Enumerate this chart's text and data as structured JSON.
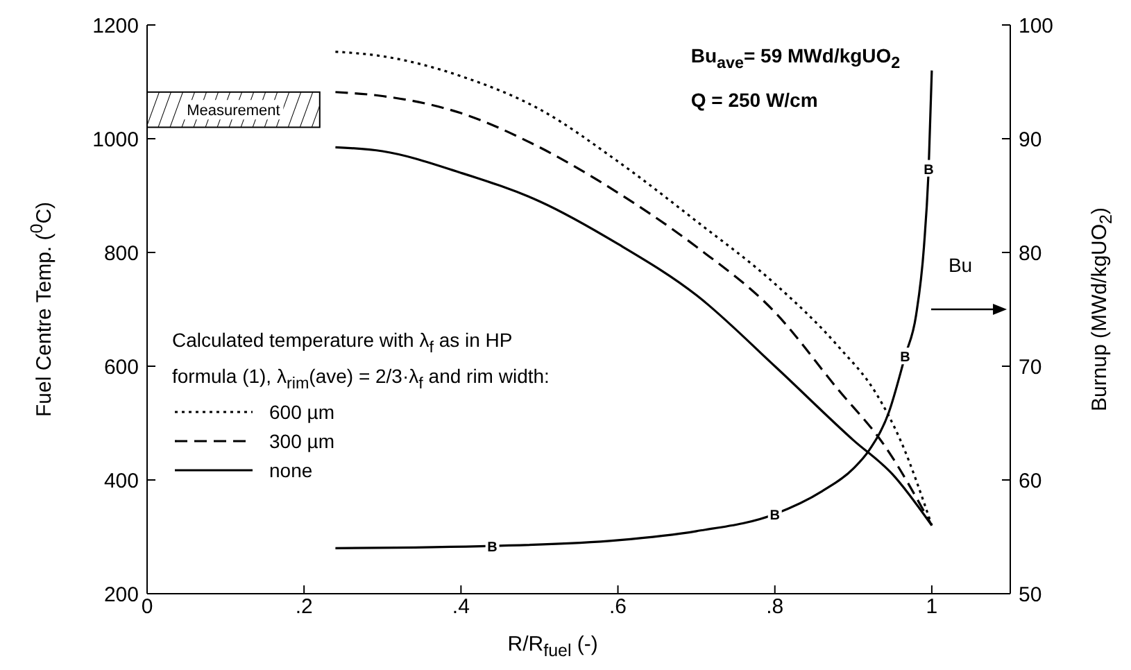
{
  "chart_data": {
    "type": "line",
    "xlabel": "R/R$_{fuel}$ (-)",
    "ylabel": "Fuel Centre Temp. ($^{0}$C)",
    "y2label": "Burnup (MWd/kgUO$_{2}$)",
    "legend_title": "Calculated temperature with λ$_{f}$ as in HP formula (1), λ$_{rim}$(ave) = 2/3·λ$_{f}$ and rim width:",
    "annotations": [
      "Bu$_{ave}$= 59 MWd/kgUO$_{2}$",
      "Q = 250 W/cm"
    ],
    "xlim": [
      0,
      1.1
    ],
    "xticks": [
      0,
      {
        "value": 0.2,
        "label": ".2"
      },
      {
        "value": 0.4,
        "label": ".4"
      },
      {
        "value": 0.6,
        "label": ".6"
      },
      {
        "value": 0.8,
        "label": ".8"
      },
      1
    ],
    "ylim": [
      200,
      1200
    ],
    "yticks": [
      200,
      400,
      600,
      800,
      1000,
      1200
    ],
    "y2lim": [
      50,
      100
    ],
    "y2ticks": [
      50,
      60,
      70,
      80,
      90,
      100
    ],
    "legend": "bottom left",
    "bands": [
      {
        "axis": "y",
        "from": 1020,
        "to": 1082,
        "label": "Measurement"
      }
    ],
    "series": [
      {
        "name": "600 µm",
        "color": "#000000",
        "line_style": "dotted",
        "x": [
          0.24,
          0.3,
          0.4,
          0.5,
          0.6,
          0.7,
          0.8,
          0.88,
          0.93,
          0.96,
          1.0
        ],
        "values": [
          1153,
          1145,
          1110,
          1052,
          960,
          855,
          745,
          636,
          550,
          470,
          320
        ]
      },
      {
        "name": "300 µm",
        "color": "#000000",
        "line_style": "dashed",
        "x": [
          0.24,
          0.3,
          0.4,
          0.5,
          0.6,
          0.7,
          0.8,
          0.88,
          0.94,
          1.0
        ],
        "values": [
          1082,
          1075,
          1045,
          985,
          905,
          810,
          695,
          560,
          460,
          320
        ]
      },
      {
        "name": "none",
        "color": "#000000",
        "line_style": "solid",
        "x": [
          0.24,
          0.3,
          0.4,
          0.5,
          0.6,
          0.7,
          0.8,
          0.9,
          0.95,
          1.0
        ],
        "values": [
          985,
          978,
          940,
          890,
          815,
          725,
          600,
          470,
          410,
          320
        ]
      },
      {
        "name": "Bu",
        "color": "#000000",
        "line_style": "solid",
        "axis": "y2",
        "x": [
          0.24,
          0.44,
          0.6,
          0.7,
          0.8,
          0.86,
          0.9,
          0.92,
          0.945,
          0.966,
          0.98,
          0.99,
          0.996,
          1.0
        ],
        "values": [
          54.0,
          54.2,
          54.7,
          55.5,
          57.0,
          59.0,
          61.0,
          62.6,
          65.9,
          70.9,
          74.5,
          80.5,
          87.4,
          96
        ],
        "value_labels": [
          null,
          "B",
          null,
          null,
          "B",
          null,
          null,
          null,
          null,
          "B",
          null,
          null,
          "B",
          null
        ]
      }
    ]
  }
}
